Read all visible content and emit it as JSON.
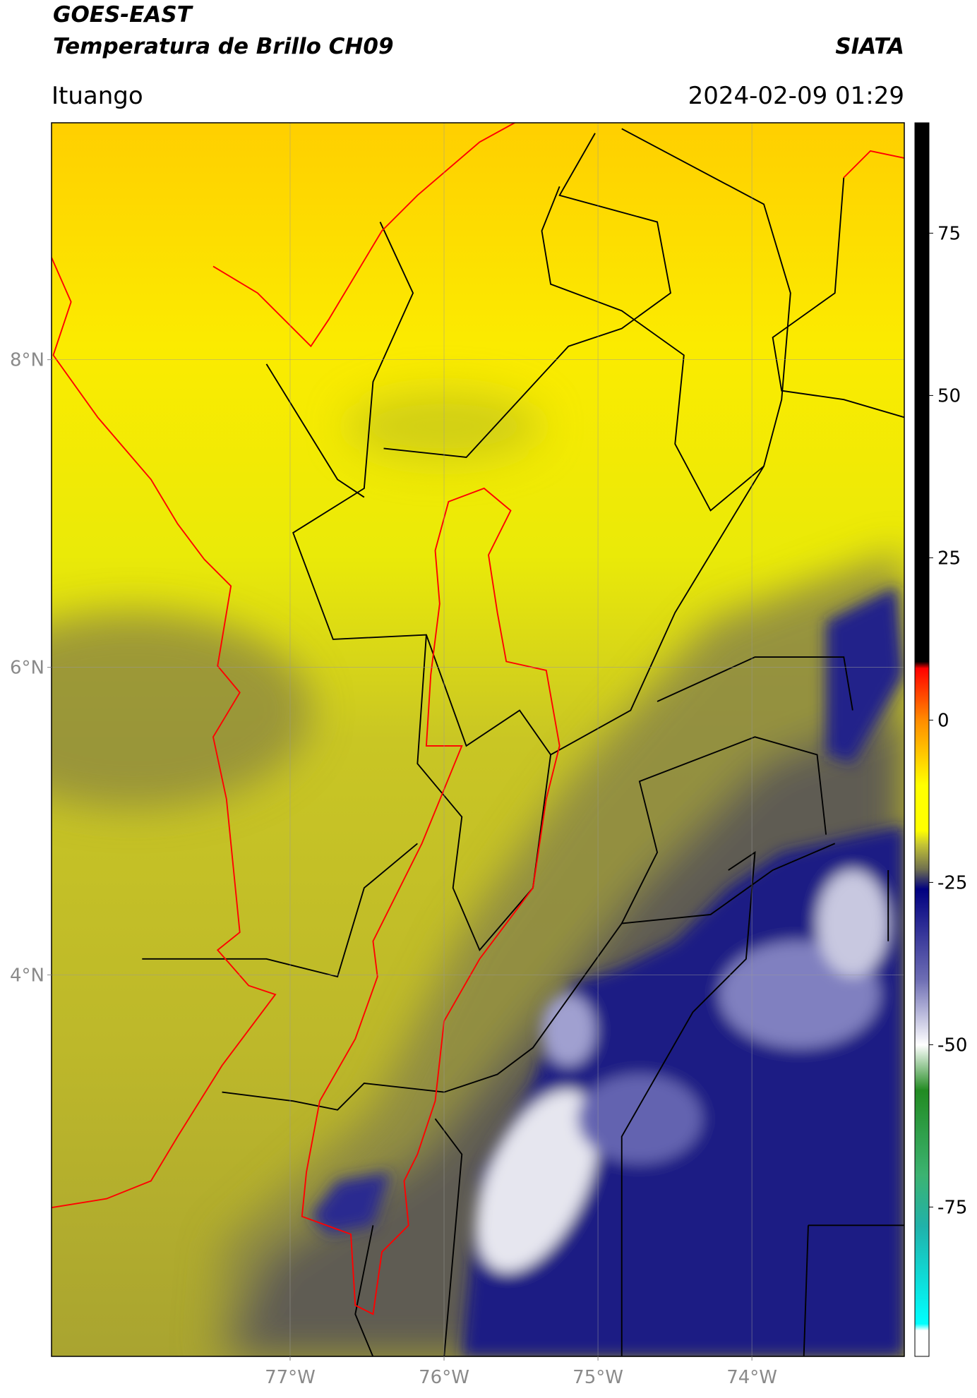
{
  "chart_data": {
    "type": "map",
    "title": "GOES-EAST",
    "subtitle": "Temperatura de Brillo CH09",
    "source": "SIATA",
    "region": "Ituango",
    "timestamp": "2024-02-09 01:29",
    "xlim": [
      -78.55,
      -73.01
    ],
    "ylim": [
      1.52,
      9.54
    ],
    "xticks": [
      {
        "value": -77,
        "label": "77°W"
      },
      {
        "value": -76,
        "label": "76°W"
      },
      {
        "value": -75,
        "label": "75°W"
      },
      {
        "value": -74,
        "label": "74°W"
      }
    ],
    "yticks": [
      {
        "value": 4,
        "label": "4°N"
      },
      {
        "value": 6,
        "label": "6°N"
      },
      {
        "value": 8,
        "label": "8°N"
      }
    ],
    "grid": true,
    "colorbar": {
      "lim": [
        -98,
        92
      ],
      "ticks": [
        75,
        50,
        25,
        0,
        -25,
        -50,
        -75
      ],
      "stops": [
        {
          "value": 92,
          "color": "#000000"
        },
        {
          "value": 9,
          "color": "#000000"
        },
        {
          "value": 8,
          "color": "#ff0000"
        },
        {
          "value": 0,
          "color": "#ff8c00"
        },
        {
          "value": -10,
          "color": "#ffff00"
        },
        {
          "value": -17,
          "color": "#ffff00"
        },
        {
          "value": -19,
          "color": "#c8c832"
        },
        {
          "value": -23,
          "color": "#6e6e50"
        },
        {
          "value": -26,
          "color": "#000080"
        },
        {
          "value": -40,
          "color": "#6e6eb4"
        },
        {
          "value": -50,
          "color": "#ffffff"
        },
        {
          "value": -57,
          "color": "#228b22"
        },
        {
          "value": -70,
          "color": "#3cb371"
        },
        {
          "value": -78,
          "color": "#20b2aa"
        },
        {
          "value": -93,
          "color": "#00ffff"
        },
        {
          "value": -94,
          "color": "#ffffff"
        },
        {
          "value": -98,
          "color": "#ffffff"
        }
      ]
    }
  }
}
